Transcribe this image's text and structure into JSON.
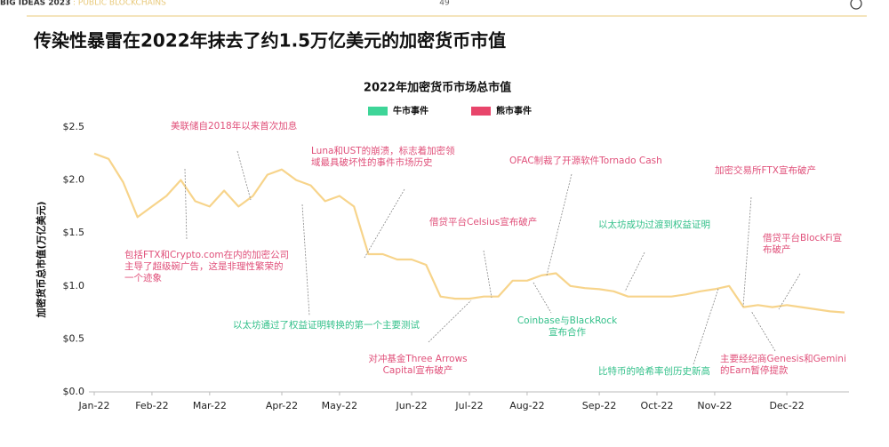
{
  "header": {
    "brand": "BIG IDEAS 2023",
    "section": ": PUBLIC BLOCKCHAINS",
    "page": "49"
  },
  "headline": "传染性暴雷在2022年抹去了约1.5万亿美元的加密货币市值",
  "chart_data": {
    "type": "line",
    "title": "2022年加密货币市场总市值",
    "y_label": "加密货币总市值(万亿美元)",
    "legend_items": [
      {
        "name": "牛市事件",
        "color": "#3ed598"
      },
      {
        "name": "熊市事件",
        "color": "#e8456b"
      }
    ],
    "categories": [
      "Jan-22",
      null,
      null,
      null,
      "Feb-22",
      null,
      null,
      null,
      "Mar-22",
      null,
      null,
      null,
      null,
      "Apr-22",
      null,
      null,
      null,
      "May-22",
      null,
      null,
      null,
      null,
      "Jun-22",
      null,
      null,
      null,
      "Jul-22",
      null,
      null,
      null,
      "Aug-22",
      null,
      null,
      null,
      null,
      "Sep-22",
      null,
      null,
      null,
      "Oct-22",
      null,
      null,
      null,
      "Nov-22",
      null,
      null,
      null,
      null,
      "Dec-22",
      null,
      null,
      null,
      null
    ],
    "values": [
      2.25,
      2.2,
      1.98,
      1.65,
      1.75,
      1.85,
      2.0,
      1.8,
      1.75,
      1.9,
      1.75,
      1.85,
      2.05,
      2.1,
      2.0,
      1.95,
      1.8,
      1.85,
      1.75,
      1.3,
      1.3,
      1.25,
      1.25,
      1.2,
      0.9,
      0.88,
      0.88,
      0.9,
      0.9,
      1.05,
      1.05,
      1.1,
      1.12,
      1.0,
      0.98,
      0.97,
      0.95,
      0.9,
      0.9,
      0.9,
      0.9,
      0.92,
      0.95,
      0.97,
      1.0,
      0.8,
      0.82,
      0.8,
      0.82,
      0.8,
      0.78,
      0.76,
      0.75
    ],
    "color": "#f7d48b",
    "ylim": [
      0,
      2.5
    ],
    "yticks": [
      {
        "value": 0,
        "label": "$0.0"
      },
      {
        "value": 0.5,
        "label": "$0.5"
      },
      {
        "value": 1,
        "label": "$1.0"
      },
      {
        "value": 1.5,
        "label": "$1.5"
      },
      {
        "value": 2,
        "label": "$2.0"
      },
      {
        "value": 2.5,
        "label": "$2.5"
      }
    ],
    "grid": false,
    "annotations": [
      {
        "lines": [
          "美联储自2018年以来首次加息"
        ],
        "color": "#e0507a"
      },
      {
        "lines": [
          "Luna和UST的崩溃，标志着加密领",
          "域最具破坏性的事件市场历史"
        ],
        "color": "#e0507a"
      },
      {
        "lines": [
          "OFAC制裁了开源软件Tornado Cash"
        ],
        "color": "#e0507a"
      },
      {
        "lines": [
          "加密交易所FTX宣布破产"
        ],
        "color": "#e0507a"
      },
      {
        "lines": [
          "借贷平台Celsius宣布破产"
        ],
        "color": "#e0507a"
      },
      {
        "lines": [
          "以太坊成功过渡到权益证明"
        ],
        "color": "#33c08a"
      },
      {
        "lines": [
          "借贷平台BlockFi宣",
          "布破产"
        ],
        "color": "#e0507a"
      },
      {
        "lines": [
          "包括FTX和Crypto.com在内的加密公司",
          "主导了超级碗广告，这是非理性繁荣的",
          "一个迹象"
        ],
        "color": "#e0507a"
      },
      {
        "lines": [
          "以太坊通过了权益证明转换的第一个主要测试"
        ],
        "color": "#33c08a"
      },
      {
        "lines": [
          "Coinbase与BlackRock",
          "宣布合作"
        ],
        "color": "#33c08a"
      },
      {
        "lines": [
          "对冲基金Three Arrows",
          "Capital宣布破产"
        ],
        "color": "#e0507a"
      },
      {
        "lines": [
          "比特币的哈希率创历史新高"
        ],
        "color": "#33c08a"
      },
      {
        "lines": [
          "主要经纪商Genesis和Gemini",
          "的Earn暂停提款"
        ],
        "color": "#e0507a"
      }
    ]
  }
}
